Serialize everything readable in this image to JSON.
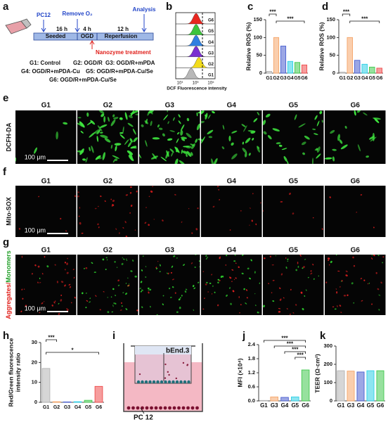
{
  "panel_labels": [
    "a",
    "b",
    "c",
    "d",
    "e",
    "f",
    "g",
    "h",
    "i",
    "j",
    "k"
  ],
  "a": {
    "pc12": "PC12",
    "remove": "Remove O₂",
    "analysis": "Analysis",
    "t1": "16 h",
    "t2": "4 h",
    "t3": "12 h",
    "seeded": "Seeded",
    "ogd": "OGD",
    "reperfusion": "Reperfusion",
    "nanozyme": "Nanozyme treatment",
    "groups": [
      "G1: Control",
      "G2: OGD/R",
      "G3: OGD/R+mPDA",
      "G4: OGD/R+mPDA-Cu",
      "G5: OGD/R+mPDA-Cu/Se",
      "G6: OGD/R+mPDA-Cu/Se"
    ]
  },
  "b": {
    "groups": [
      "G6",
      "G5",
      "G4",
      "G3",
      "G2",
      "G1"
    ],
    "colors": [
      "#e8261f",
      "#3cc43c",
      "#2f7fe0",
      "#7a2fd0",
      "#f2dc1b",
      "#b8b8b8"
    ],
    "x_ticks": [
      "10¹",
      "10³",
      "10⁵"
    ],
    "x_label": "DCF Fluorescence intensity"
  },
  "micrographs": {
    "columns": [
      "G1",
      "G2",
      "G3",
      "G4",
      "G5",
      "G6"
    ],
    "rows": [
      {
        "label": "DCFH-DA"
      },
      {
        "label": "Mito-SOX"
      },
      {
        "label": [
          "Aggregates/",
          "Monomers"
        ]
      }
    ],
    "scale_bar": "100 μm"
  },
  "i": {
    "top": "bEnd.3",
    "bottom": "PC 12"
  },
  "chart_data": [
    {
      "type": "bar",
      "ylabel": "Relative ROS (%)",
      "categories": [
        "G1",
        "G2",
        "G3",
        "G4",
        "G5",
        "G6"
      ],
      "values": [
        5,
        100,
        76,
        33,
        30,
        23
      ],
      "colors": [
        "#b5b5b5",
        "#f5a66a",
        "#4a5fd0",
        "#2fd0e6",
        "#42c84f",
        "#ee4c4c"
      ],
      "ylim": [
        0,
        150
      ],
      "yticks": [
        0,
        50,
        100,
        150
      ],
      "annotations": [
        "***",
        "***"
      ]
    },
    {
      "type": "bar",
      "ylabel": "Relative ROS (%)",
      "categories": [
        "G1",
        "G2",
        "G3",
        "G4",
        "G5",
        "G6"
      ],
      "values": [
        3,
        100,
        36,
        25,
        17,
        14
      ],
      "colors": [
        "#b5b5b5",
        "#f5a66a",
        "#4a5fd0",
        "#2fd0e6",
        "#42c84f",
        "#ee4c4c"
      ],
      "ylim": [
        0,
        150
      ],
      "yticks": [
        0,
        50,
        100,
        150
      ],
      "annotations": [
        "***",
        "***"
      ]
    },
    {
      "type": "bar",
      "ylabel": [
        "Red/Green fluorescence",
        "intensity ratio"
      ],
      "categories": [
        "G1",
        "G2",
        "G3",
        "G4",
        "G5",
        "G6"
      ],
      "values": [
        17,
        0.3,
        0.2,
        0.3,
        1,
        8
      ],
      "colors": [
        "#b5b5b5",
        "#f5a66a",
        "#4a5fd0",
        "#2fd0e6",
        "#42c84f",
        "#ee4c4c"
      ],
      "ylim": [
        0,
        30
      ],
      "yticks": [
        0,
        10,
        20,
        30
      ],
      "annotations": [
        "***",
        "*"
      ]
    },
    {
      "type": "bar",
      "ylabel": "MFI (×10⁴)",
      "categories": [
        "G1",
        "G3",
        "G4",
        "G5",
        "G6"
      ],
      "values": [
        0.02,
        0.17,
        0.15,
        0.17,
        1.32
      ],
      "colors": [
        "#b5b5b5",
        "#f5a66a",
        "#4a5fd0",
        "#2fd0e6",
        "#42c84f"
      ],
      "ylim": [
        0,
        2.4
      ],
      "yticks": [
        {
          "value": 0,
          "label": "0.0"
        },
        0.6,
        1.2,
        1.8,
        2.4
      ],
      "annotations": [
        "***",
        "***",
        "***",
        "***"
      ]
    },
    {
      "type": "bar",
      "ylabel": "TEER (Ω·cm²)",
      "categories": [
        "G1",
        "G3",
        "G4",
        "G5",
        "G6"
      ],
      "values": [
        165,
        163,
        158,
        165,
        165
      ],
      "colors": [
        "#b5b5b5",
        "#f5a66a",
        "#4a5fd0",
        "#2fd0e6",
        "#42c84f"
      ],
      "ylim": [
        0,
        300
      ],
      "yticks": [
        0,
        100,
        200,
        300
      ]
    }
  ]
}
